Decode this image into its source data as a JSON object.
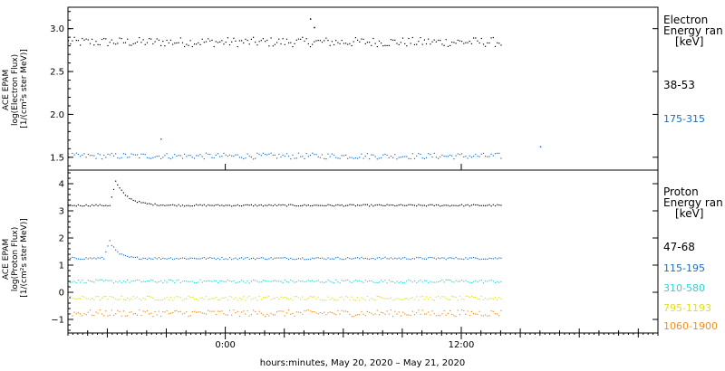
{
  "chart_data": [
    {
      "type": "scatter",
      "panel": "electron",
      "ylabel_lines": [
        "ACE EPAM",
        "log(Electron Flux)",
        "[1/(cm²s ster MeV)]"
      ],
      "ylim": [
        1.35,
        3.25
      ],
      "yticks": [
        1.5,
        2.0,
        2.5,
        3.0
      ],
      "ytick_labels": [
        "1.5",
        "2.0",
        "2.5",
        "3.0"
      ],
      "legend_title_lines": [
        "Electron",
        "Energy ran",
        "[keV]"
      ],
      "series": [
        {
          "name": "38-53",
          "color": "#000000",
          "base": 2.85,
          "jitter": 0.055,
          "spikes": [
            {
              "t": 4.3,
              "v": 3.12
            },
            {
              "t": 4.5,
              "v": 3.02
            }
          ]
        },
        {
          "name": "175-315",
          "color": "#1a6fc4",
          "base": 1.52,
          "jitter": 0.035,
          "spikes": [
            {
              "t": -3.3,
              "v": 1.72
            },
            {
              "t": 16.0,
              "v": 1.63
            }
          ]
        }
      ]
    },
    {
      "type": "scatter",
      "panel": "proton",
      "ylabel_lines": [
        "ACE EPAM",
        "log(Proton Flux)",
        "[1/(cm²s ster MeV)]"
      ],
      "ylim": [
        -1.5,
        4.5
      ],
      "yticks": [
        -1,
        0,
        1,
        2,
        3,
        4
      ],
      "ytick_labels": [
        "−1",
        "0",
        "1",
        "2",
        "3",
        "4"
      ],
      "legend_title_lines": [
        "Proton",
        "Energy ran",
        "[keV]"
      ],
      "series": [
        {
          "name": "47-68",
          "color": "#000000",
          "base": 3.22,
          "jitter": 0.03,
          "event": {
            "t": -5.6,
            "peak": 4.1,
            "width": 0.6
          }
        },
        {
          "name": "115-195",
          "color": "#1a6fc4",
          "base": 1.27,
          "jitter": 0.04,
          "event": {
            "t": -5.9,
            "peak": 1.95,
            "width": 0.35
          }
        },
        {
          "name": "310-580",
          "color": "#2ad4d4",
          "base": 0.42,
          "jitter": 0.06
        },
        {
          "name": "795-1193",
          "color": "#e0e020",
          "base": -0.2,
          "jitter": 0.08
        },
        {
          "name": "1060-1900",
          "color": "#f0901a",
          "base": -0.75,
          "jitter": 0.12
        }
      ]
    }
  ],
  "x_axis": {
    "range": [
      -8,
      22
    ],
    "data_end": 14,
    "tick_labels": [
      {
        "t": 0,
        "label": "0:00"
      },
      {
        "t": 12,
        "label": "12:00"
      }
    ],
    "xlabel": "hours:minutes, May 20, 2020 – May 21, 2020"
  }
}
